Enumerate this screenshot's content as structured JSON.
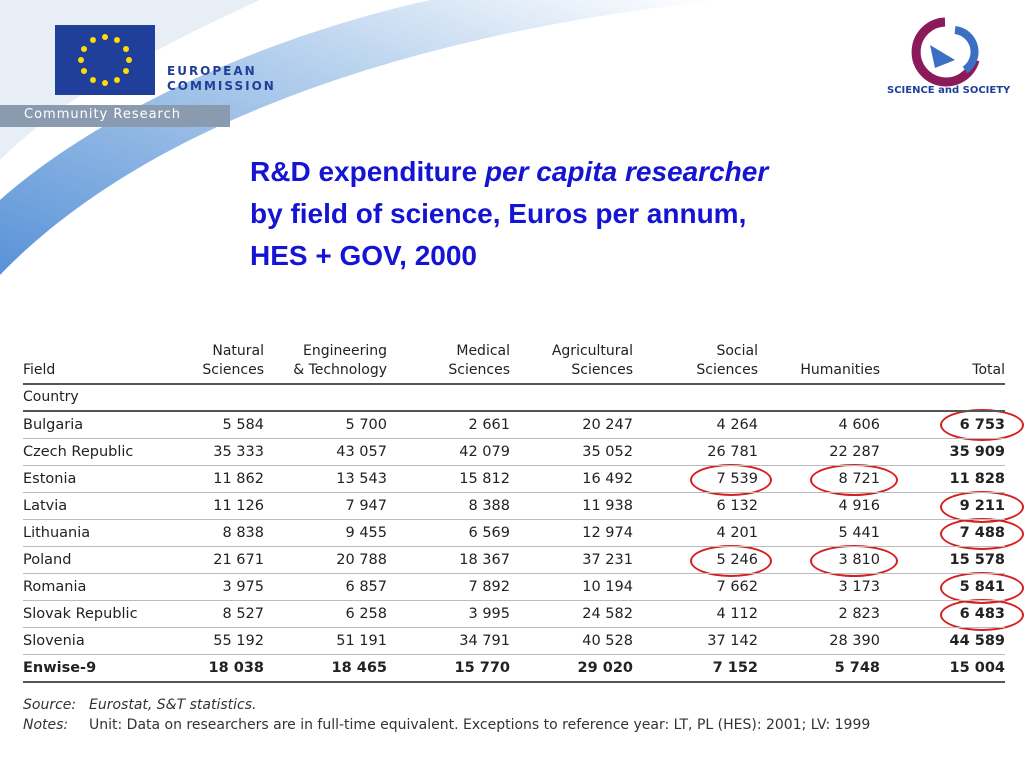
{
  "header": {
    "org_line1": "EUROPEAN",
    "org_line2": "COMMISSION",
    "org_unit": "Community Research",
    "partner": "SCIENCE and SOCIETY"
  },
  "title": {
    "line1_plain": "R&D expenditure",
    "line1_italic": "per capita researcher",
    "line2": "by field of science, Euros per annum,",
    "line3": "HES + GOV, 2000"
  },
  "table": {
    "columns": [
      [
        "Field"
      ],
      [
        "Natural",
        "Sciences"
      ],
      [
        "Engineering",
        "& Technology"
      ],
      [
        "Medical",
        "Sciences"
      ],
      [
        "Agricultural",
        "Sciences"
      ],
      [
        "Social",
        "Sciences"
      ],
      [
        "Humanities"
      ],
      [
        "Total"
      ]
    ],
    "section": "Country",
    "rows": [
      [
        "Bulgaria",
        "5 584",
        "5 700",
        "2 661",
        "20 247",
        "4 264",
        "4 606",
        "6 753"
      ],
      [
        "Czech Republic",
        "35 333",
        "43 057",
        "42 079",
        "35 052",
        "26 781",
        "22 287",
        "35 909"
      ],
      [
        "Estonia",
        "11 862",
        "13 543",
        "15 812",
        "16 492",
        "7 539",
        "8 721",
        "11 828"
      ],
      [
        "Latvia",
        "11 126",
        "7 947",
        "8 388",
        "11 938",
        "6 132",
        "4 916",
        "9 211"
      ],
      [
        "Lithuania",
        "8 838",
        "9 455",
        "6 569",
        "12 974",
        "4 201",
        "5 441",
        "7 488"
      ],
      [
        "Poland",
        "21 671",
        "20 788",
        "18 367",
        "37 231",
        "5 246",
        "3 810",
        "15 578"
      ],
      [
        "Romania",
        "3 975",
        "6 857",
        "7 892",
        "10 194",
        "7 662",
        "3 173",
        "5 841"
      ],
      [
        "Slovak Republic",
        "8 527",
        "6 258",
        "3 995",
        "24 582",
        "4 112",
        "2 823",
        "6 483"
      ],
      [
        "Slovenia",
        "55 192",
        "51 191",
        "34 791",
        "40 528",
        "37 142",
        "28 390",
        "44 589"
      ],
      [
        "Enwise-9",
        "18 038",
        "18 465",
        "15 770",
        "29 020",
        "7 152",
        "5 748",
        "15 004"
      ]
    ]
  },
  "notes": [
    {
      "label": "Source:",
      "text": "Eurostat, S&T statistics."
    },
    {
      "label": "Notes:",
      "text": "Unit: Data on researchers are in full-time equivalent. Exceptions to reference year: LT, PL (HES): 2001; LV: 1999"
    }
  ]
}
